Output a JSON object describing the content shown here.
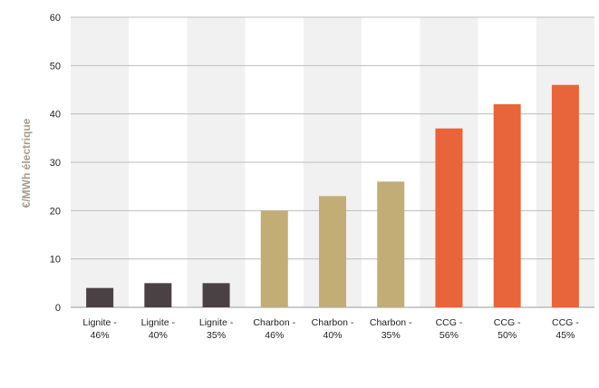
{
  "chart_data": {
    "type": "bar",
    "title": "",
    "xlabel": "",
    "ylabel": "€/MWh électrique",
    "ylim": [
      0,
      60
    ],
    "yticks": [
      0,
      10,
      20,
      30,
      40,
      50,
      60
    ],
    "grid": true,
    "legend": "none",
    "categories": [
      [
        "Lignite -",
        "46%"
      ],
      [
        "Lignite -",
        "40%"
      ],
      [
        "Lignite -",
        "35%"
      ],
      [
        "Charbon -",
        "46%"
      ],
      [
        "Charbon -",
        "40%"
      ],
      [
        "Charbon -",
        "35%"
      ],
      [
        "CCG -",
        "56%"
      ],
      [
        "CCG -",
        "50%"
      ],
      [
        "CCG -",
        "45%"
      ]
    ],
    "values": [
      4,
      5,
      5,
      20,
      23,
      26,
      37,
      42,
      46
    ],
    "colors": [
      "#4a4145",
      "#4a4145",
      "#4a4145",
      "#c2ad77",
      "#c2ad77",
      "#c2ad77",
      "#e8643a",
      "#e8643a",
      "#e8643a"
    ],
    "band_colors": [
      "#f1f1f1",
      "#ffffff"
    ]
  }
}
